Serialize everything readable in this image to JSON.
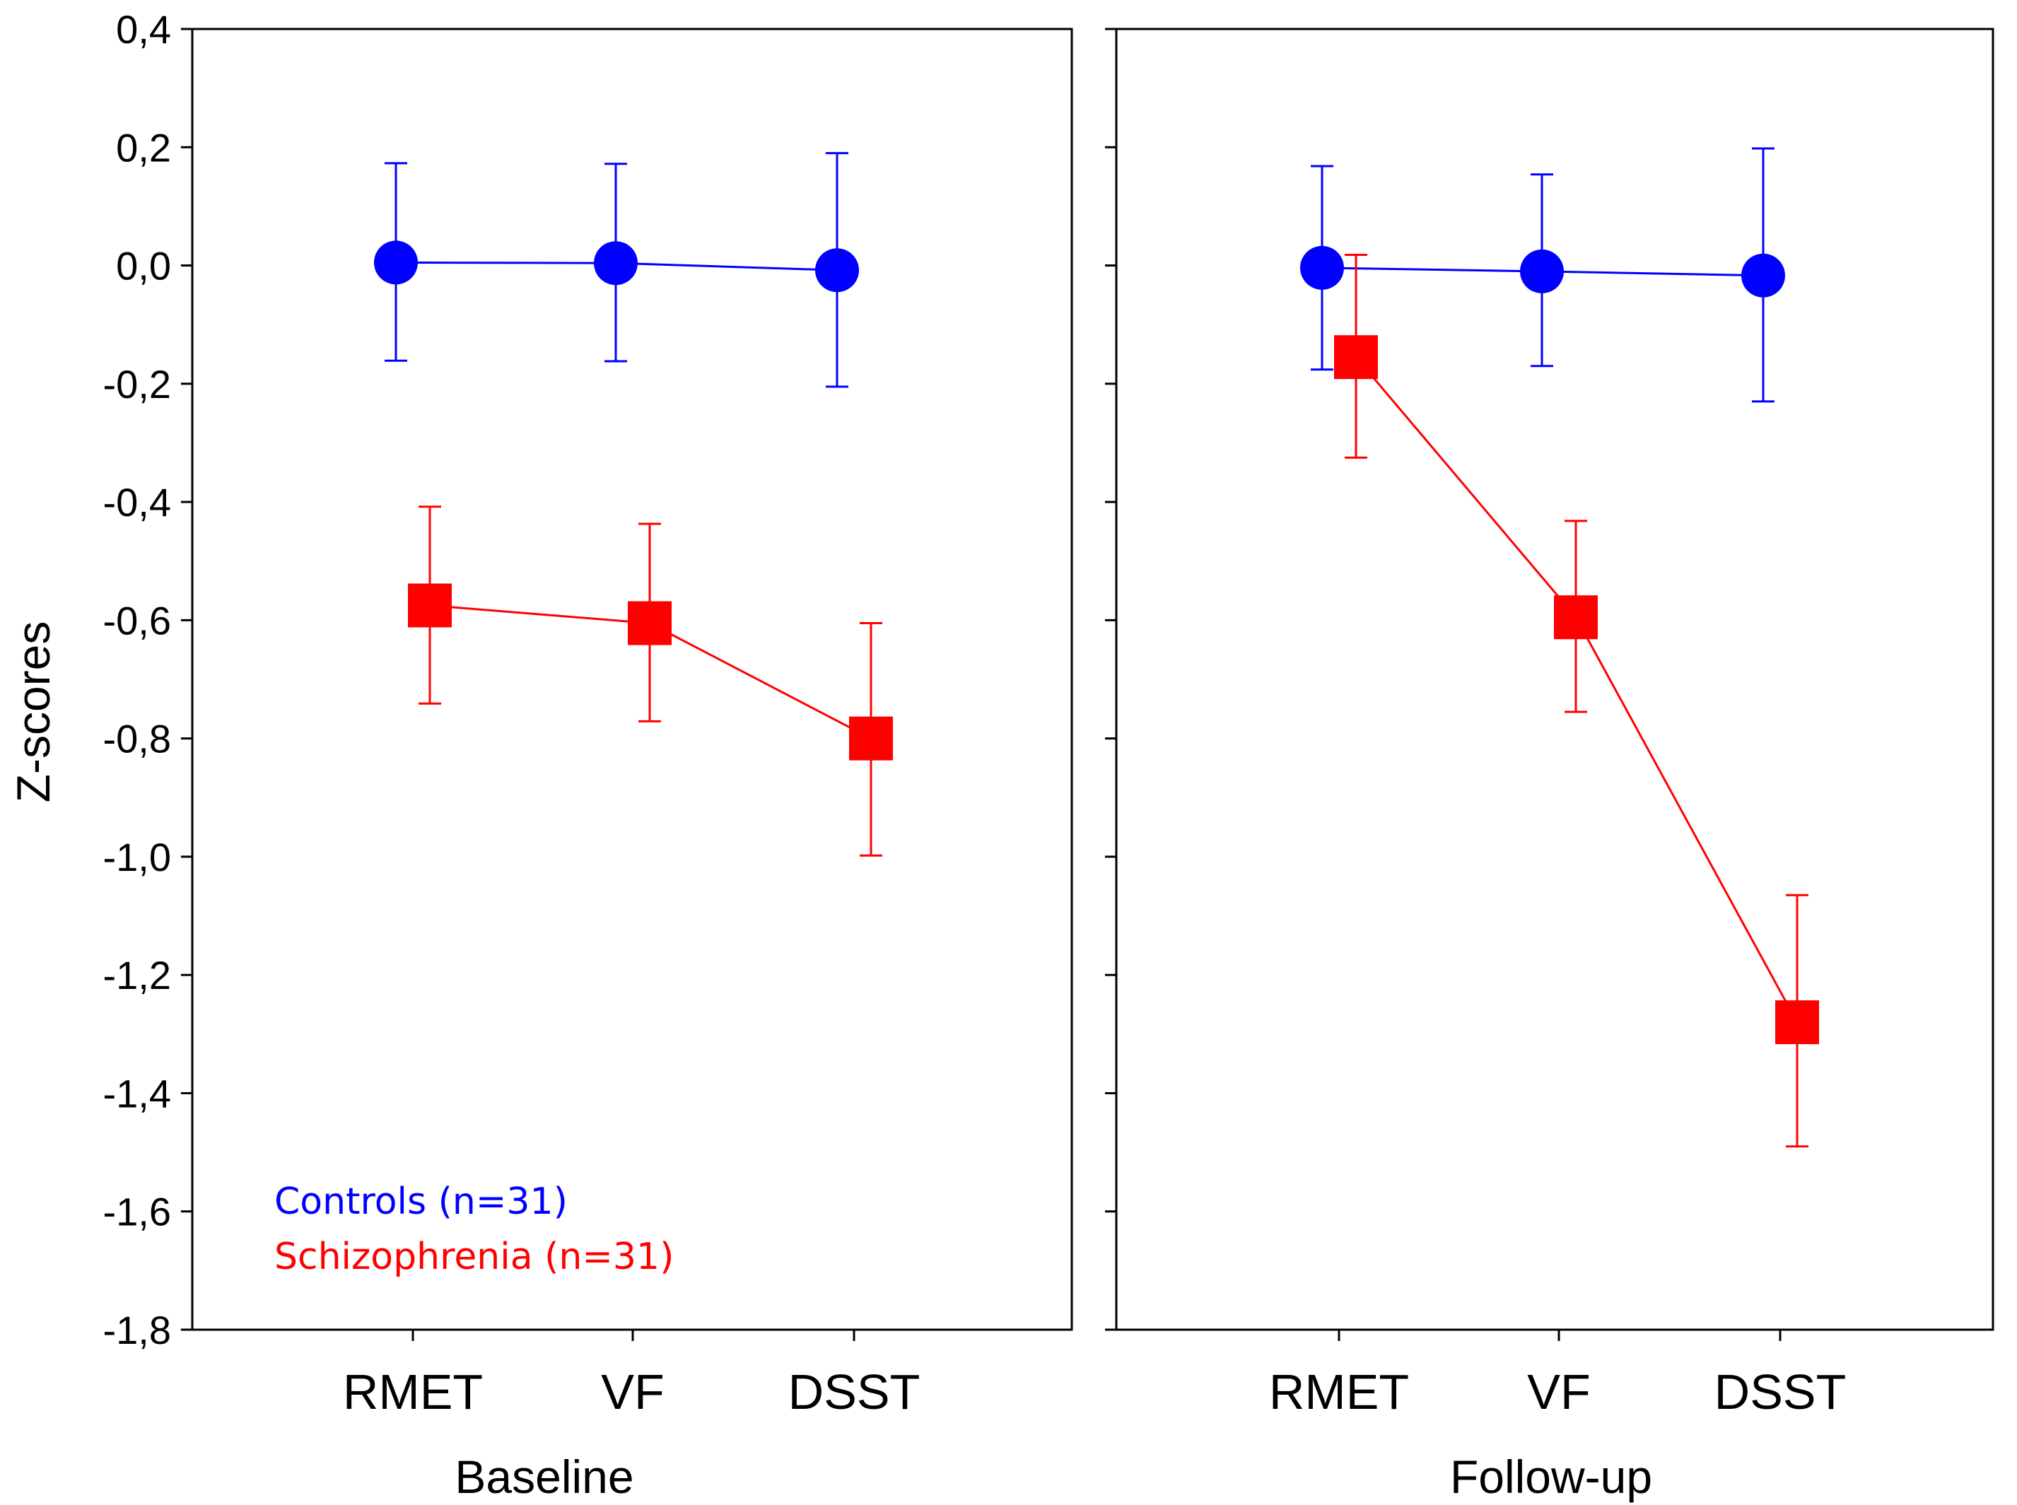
{
  "chart_data": {
    "type": "line",
    "ylabel": "Z-scores",
    "ylim": [
      -1.8,
      0.4
    ],
    "yticks": [
      0.4,
      0.2,
      0.0,
      -0.2,
      -0.4,
      -0.6,
      -0.8,
      -1.0,
      -1.2,
      -1.4,
      -1.6,
      -1.8
    ],
    "ytick_labels": [
      "0,4",
      "0,2",
      "0,0",
      "-0,2",
      "-0,4",
      "-0,6",
      "-0,8",
      "-1,0",
      "-1,2",
      "-1,4",
      "-1,6",
      "-1,8"
    ],
    "categories": [
      "RMET",
      "VF",
      "DSST"
    ],
    "colors": {
      "controls": "#0000ff",
      "schizophrenia": "#ff0000"
    },
    "legend": {
      "position": "bottom-left",
      "controls": "Controls (n=31)",
      "schizophrenia": "Schizophrenia (n=31)"
    },
    "panels": [
      {
        "label": "Baseline",
        "series": [
          {
            "name": "Controls (n=31)",
            "key": "controls",
            "marker": "circle",
            "values": [
              0.005,
              0.004,
              -0.008
            ],
            "upper": [
              0.173,
              0.172,
              0.19
            ],
            "lower": [
              -0.161,
              -0.162,
              -0.205
            ]
          },
          {
            "name": "Schizophrenia (n=31)",
            "key": "schizophrenia",
            "marker": "square",
            "values": [
              -0.575,
              -0.605,
              -0.8
            ],
            "upper": [
              -0.408,
              -0.437,
              -0.605
            ],
            "lower": [
              -0.741,
              -0.771,
              -0.998
            ]
          }
        ]
      },
      {
        "label": "Follow-up",
        "series": [
          {
            "name": "Controls (n=31)",
            "key": "controls",
            "marker": "circle",
            "values": [
              -0.004,
              -0.01,
              -0.017
            ],
            "upper": [
              0.168,
              0.154,
              0.198
            ],
            "lower": [
              -0.176,
              -0.17,
              -0.23
            ]
          },
          {
            "name": "Schizophrenia (n=31)",
            "key": "schizophrenia",
            "marker": "square",
            "values": [
              -0.155,
              -0.595,
              -1.28
            ],
            "upper": [
              0.018,
              -0.432,
              -1.065
            ],
            "lower": [
              -0.325,
              -0.755,
              -1.49
            ]
          }
        ]
      }
    ]
  }
}
